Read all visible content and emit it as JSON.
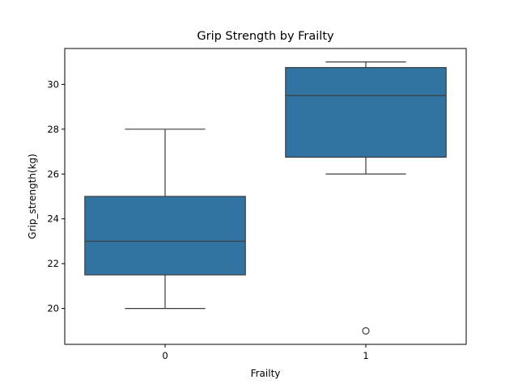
{
  "chart_data": {
    "type": "box",
    "title": "Grip Strength by Frailty",
    "xlabel": "Frailty",
    "ylabel": "Grip_strength(kg)",
    "categories": [
      "0",
      "1"
    ],
    "ylim": [
      18.4,
      31.6
    ],
    "yticks": [
      20,
      22,
      24,
      26,
      28,
      30
    ],
    "grid": false,
    "boxes": [
      {
        "category": "0",
        "whisker_low": 20,
        "q1": 21.5,
        "median": 23,
        "q3": 25,
        "whisker_high": 28,
        "outliers": []
      },
      {
        "category": "1",
        "whisker_low": 26,
        "q1": 26.75,
        "median": 29.5,
        "q3": 30.75,
        "whisker_high": 31,
        "outliers": [
          19
        ]
      }
    ],
    "box_color": "#3274a1",
    "line_color": "#3d3d3d"
  }
}
